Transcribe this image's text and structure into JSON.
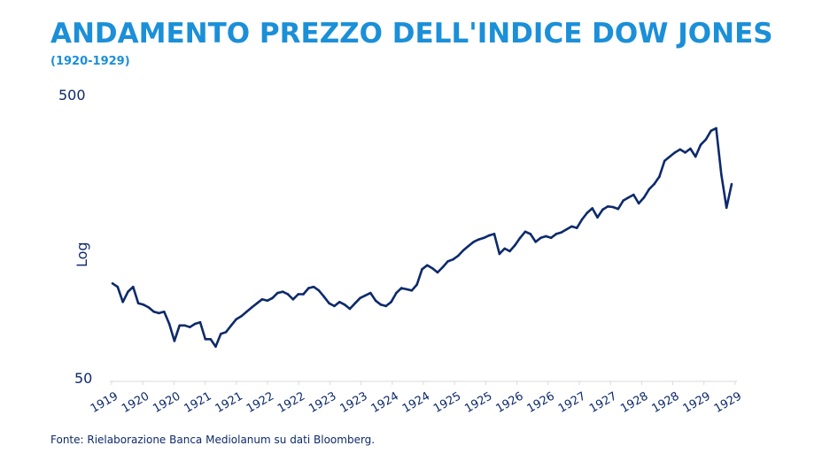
{
  "title": "ANDAMENTO PREZZO DELL'INDICE DOW JONES",
  "subtitle": "(1920-1929)",
  "footer": "Fonte: Rielaborazione Banca Mediolanum su dati Bloomberg.",
  "colors": {
    "title": "#1b8fd8",
    "line": "#0d2a6b",
    "axis": "#d9d9d9"
  },
  "chart_data": {
    "type": "line",
    "title": "ANDAMENTO PREZZO DELL'INDICE DOW JONES",
    "subtitle": "(1920-1929)",
    "ylabel": "Log",
    "xlabel": "",
    "yscale": "log",
    "ylim": [
      50,
      500
    ],
    "ytick_labels": [
      "500",
      "50"
    ],
    "xtick_labels": [
      "1919",
      "1920",
      "1920",
      "1921",
      "1921",
      "1922",
      "1922",
      "1923",
      "1923",
      "1924",
      "1924",
      "1925",
      "1925",
      "1926",
      "1926",
      "1927",
      "1927",
      "1928",
      "1928",
      "1929",
      "1929"
    ],
    "grid": false,
    "series": [
      {
        "x": [
          "1919-12",
          "1920-01",
          "1920-02",
          "1920-03",
          "1920-04",
          "1920-05",
          "1920-06",
          "1920-07",
          "1920-08",
          "1920-09",
          "1920-10",
          "1920-11",
          "1920-12",
          "1921-01",
          "1921-02",
          "1921-03",
          "1921-04",
          "1921-05",
          "1921-06",
          "1921-07",
          "1921-08",
          "1921-09",
          "1921-10",
          "1921-11",
          "1921-12",
          "1922-01",
          "1922-02",
          "1922-03",
          "1922-04",
          "1922-05",
          "1922-06",
          "1922-07",
          "1922-08",
          "1922-09",
          "1922-10",
          "1922-11",
          "1922-12",
          "1923-01",
          "1923-02",
          "1923-03",
          "1923-04",
          "1923-05",
          "1923-06",
          "1923-07",
          "1923-08",
          "1923-09",
          "1923-10",
          "1923-11",
          "1923-12",
          "1924-01",
          "1924-02",
          "1924-03",
          "1924-04",
          "1924-05",
          "1924-06",
          "1924-07",
          "1924-08",
          "1924-09",
          "1924-10",
          "1924-11",
          "1924-12",
          "1925-01",
          "1925-02",
          "1925-03",
          "1925-04",
          "1925-05",
          "1925-06",
          "1925-07",
          "1925-08",
          "1925-09",
          "1925-10",
          "1925-11",
          "1925-12",
          "1926-01",
          "1926-02",
          "1926-03",
          "1926-04",
          "1926-05",
          "1926-06",
          "1926-07",
          "1926-08",
          "1926-09",
          "1926-10",
          "1926-11",
          "1926-12",
          "1927-01",
          "1927-02",
          "1927-03",
          "1927-04",
          "1927-05",
          "1927-06",
          "1927-07",
          "1927-08",
          "1927-09",
          "1927-10",
          "1927-11",
          "1927-12",
          "1928-01",
          "1928-02",
          "1928-03",
          "1928-04",
          "1928-05",
          "1928-06",
          "1928-07",
          "1928-08",
          "1928-09",
          "1928-10",
          "1928-11",
          "1928-12",
          "1929-01",
          "1929-02",
          "1929-03",
          "1929-04",
          "1929-05",
          "1929-06",
          "1929-07",
          "1929-08",
          "1929-09",
          "1929-10",
          "1929-11",
          "1929-12"
        ],
        "values": [
          107,
          104,
          92,
          100,
          104,
          91,
          90,
          88,
          85,
          84,
          85,
          77,
          67,
          76,
          76,
          75,
          77,
          78,
          68,
          68,
          64,
          71,
          72,
          76,
          80,
          82,
          85,
          88,
          91,
          94,
          93,
          95,
          99,
          100,
          98,
          94,
          98,
          98,
          103,
          104,
          101,
          96,
          91,
          89,
          92,
          90,
          87,
          91,
          95,
          97,
          99,
          93,
          90,
          89,
          92,
          99,
          103,
          102,
          101,
          106,
          120,
          124,
          121,
          117,
          122,
          128,
          130,
          134,
          140,
          145,
          150,
          153,
          155,
          158,
          160,
          136,
          142,
          139,
          146,
          155,
          163,
          160,
          150,
          155,
          157,
          155,
          160,
          162,
          166,
          170,
          168,
          180,
          190,
          197,
          183,
          195,
          200,
          199,
          196,
          210,
          215,
          220,
          205,
          215,
          230,
          240,
          255,
          290,
          300,
          310,
          318,
          310,
          320,
          300,
          330,
          345,
          370,
          378,
          260,
          198,
          240
        ]
      }
    ]
  }
}
